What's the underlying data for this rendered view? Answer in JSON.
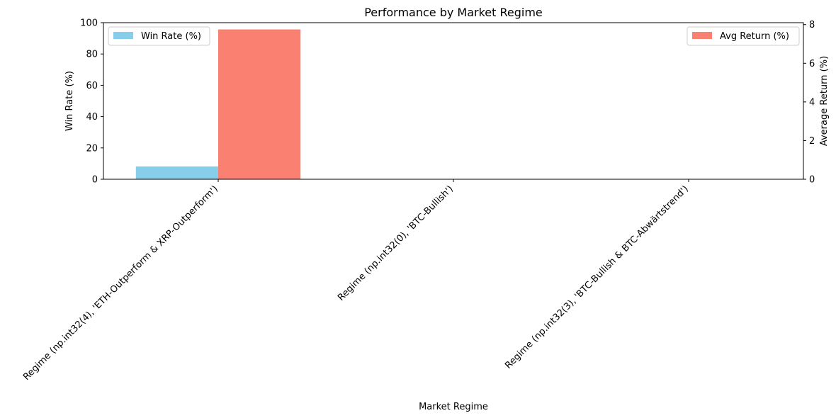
{
  "chart_data": {
    "type": "bar",
    "title": "Performance by Market Regime",
    "xlabel": "Market Regime",
    "categories": [
      "Regime (np.int32(4), 'ETH-Outperform & XRP-Outperform')",
      "Regime (np.int32(0), 'BTC-Bullish')",
      "Regime (np.int32(3), 'BTC-Bullish & BTC-Abwärtstrend')"
    ],
    "left_axis": {
      "label": "Win Rate (%)",
      "ylim": [
        0,
        100
      ],
      "ticks": [
        0,
        20,
        40,
        60,
        80,
        100
      ]
    },
    "right_axis": {
      "label": "Average Return (%)",
      "ylim": [
        0,
        8.1
      ],
      "ticks": [
        0,
        2,
        4,
        6,
        8
      ]
    },
    "series": [
      {
        "name": "Win Rate (%)",
        "axis": "left",
        "color": "#87ceeb",
        "values": [
          8.2,
          0,
          0
        ]
      },
      {
        "name": "Avg Return (%)",
        "axis": "right",
        "color": "#fa8072",
        "values": [
          7.75,
          0,
          0
        ]
      }
    ],
    "legend": {
      "left_series": "top-left",
      "right_series": "top-right"
    },
    "grid": false
  }
}
